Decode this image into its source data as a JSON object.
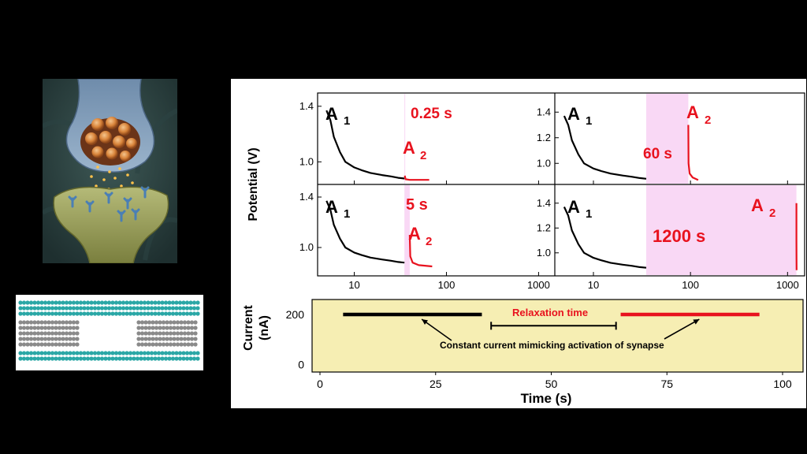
{
  "colors": {
    "black_trace": "#000000",
    "red_trace": "#e8121e",
    "relaxation_fill": "#f9d8f5",
    "current_bg": "#f6eeb3",
    "teal_layer": "#2aa7a6",
    "gray_layer": "#8a8a8a"
  },
  "illustration": {
    "synapse_image": "synapse-illustration",
    "layers_image": "layered-material-illustration"
  },
  "chart_data": [
    {
      "type": "line",
      "id": "potential-panels",
      "ylabel": "Potential (V)",
      "x_scale": "log",
      "x_ticks": [
        "10",
        "100",
        "1000"
      ],
      "panels": [
        {
          "relaxation_label": "0.25 s",
          "a1_label": "A",
          "a1_sub": "1",
          "a2_label": "A",
          "a2_sub": "2",
          "y_ticks": [
            "1.4",
            "1.0"
          ],
          "ylim": [
            0.86,
            1.45
          ],
          "relax_start": 35,
          "relax_end": 35.25,
          "a1": {
            "x": [
              5,
              5.5,
              6,
              7,
              8,
              10,
              12,
              15,
              20,
              25,
              30,
              35
            ],
            "y": [
              1.37,
              1.3,
              1.18,
              1.07,
              1.0,
              0.96,
              0.94,
              0.92,
              0.905,
              0.895,
              0.885,
              0.88
            ]
          },
          "a2": {
            "x": [
              35.3,
              36,
              40,
              50,
              65
            ],
            "y": [
              0.9,
              0.875,
              0.87,
              0.87,
              0.87
            ]
          }
        },
        {
          "relaxation_label": "60 s",
          "a1_label": "A",
          "a1_sub": "1",
          "a2_label": "A",
          "a2_sub": "2",
          "y_ticks": [
            "1.4",
            "1.2",
            "1.0"
          ],
          "ylim": [
            0.86,
            1.5
          ],
          "relax_start": 35,
          "relax_end": 95,
          "a1": {
            "x": [
              5,
              5.5,
              6,
              7,
              8,
              10,
              12,
              15,
              20,
              25,
              30,
              35
            ],
            "y": [
              1.37,
              1.3,
              1.18,
              1.07,
              1.0,
              0.96,
              0.94,
              0.92,
              0.905,
              0.895,
              0.885,
              0.88
            ]
          },
          "a2": {
            "x": [
              95,
              95.5,
              98,
              105,
              120
            ],
            "y": [
              1.3,
              1.0,
              0.92,
              0.89,
              0.87
            ]
          }
        },
        {
          "relaxation_label": "5 s",
          "a1_label": "A",
          "a1_sub": "1",
          "a2_label": "A",
          "a2_sub": "2",
          "y_ticks": [
            "1.4",
            "1.0"
          ],
          "ylim": [
            0.8,
            1.45
          ],
          "relax_start": 35,
          "relax_end": 40,
          "a1": {
            "x": [
              5,
              5.5,
              6,
              7,
              8,
              10,
              12,
              15,
              20,
              25,
              30,
              35
            ],
            "y": [
              1.37,
              1.3,
              1.18,
              1.07,
              1.0,
              0.96,
              0.94,
              0.92,
              0.905,
              0.895,
              0.885,
              0.88
            ]
          },
          "a2": {
            "x": [
              40,
              40.5,
              43,
              50,
              70
            ],
            "y": [
              1.1,
              0.93,
              0.88,
              0.86,
              0.85
            ]
          }
        },
        {
          "relaxation_label": "1200 s",
          "a1_label": "A",
          "a1_sub": "1",
          "a2_label": "A",
          "a2_sub": "2",
          "y_ticks": [
            "1.4",
            "1.2",
            "1.0"
          ],
          "ylim": [
            0.84,
            1.5
          ],
          "relax_start": 35,
          "relax_end": 1235,
          "a1": {
            "x": [
              5,
              5.5,
              6,
              7,
              8,
              10,
              12,
              15,
              20,
              25,
              30,
              35
            ],
            "y": [
              1.37,
              1.3,
              1.18,
              1.07,
              1.0,
              0.96,
              0.94,
              0.92,
              0.905,
              0.895,
              0.885,
              0.88
            ]
          },
          "a2": {
            "x": [
              1235,
              1236,
              1238,
              1240
            ],
            "y": [
              1.4,
              1.1,
              0.95,
              0.86
            ]
          }
        }
      ]
    },
    {
      "type": "line",
      "id": "current-profile",
      "ylabel_line1": "Current",
      "ylabel_line2": "(nA)",
      "xlabel": "Time (s)",
      "x_ticks": [
        0,
        25,
        50,
        75,
        100
      ],
      "x_tick_labels": [
        "0",
        "25",
        "50",
        "75",
        "100"
      ],
      "y_ticks": [
        200,
        0
      ],
      "y_tick_labels": [
        "200",
        "0"
      ],
      "xlim": [
        -2,
        101
      ],
      "ylim": [
        -30,
        260
      ],
      "series": [
        {
          "name": "activation-1",
          "x": [
            5,
            35
          ],
          "y": [
            200,
            200
          ],
          "color": "#000000"
        },
        {
          "name": "activation-2",
          "x": [
            65,
            95
          ],
          "y": [
            200,
            200
          ],
          "color": "#e8121e"
        }
      ],
      "relaxation_bracket": {
        "x": [
          37,
          64
        ],
        "y": 155
      },
      "relaxation_label": "Relaxation time",
      "annotation": "Constant current mimicking activation of synapse"
    }
  ]
}
